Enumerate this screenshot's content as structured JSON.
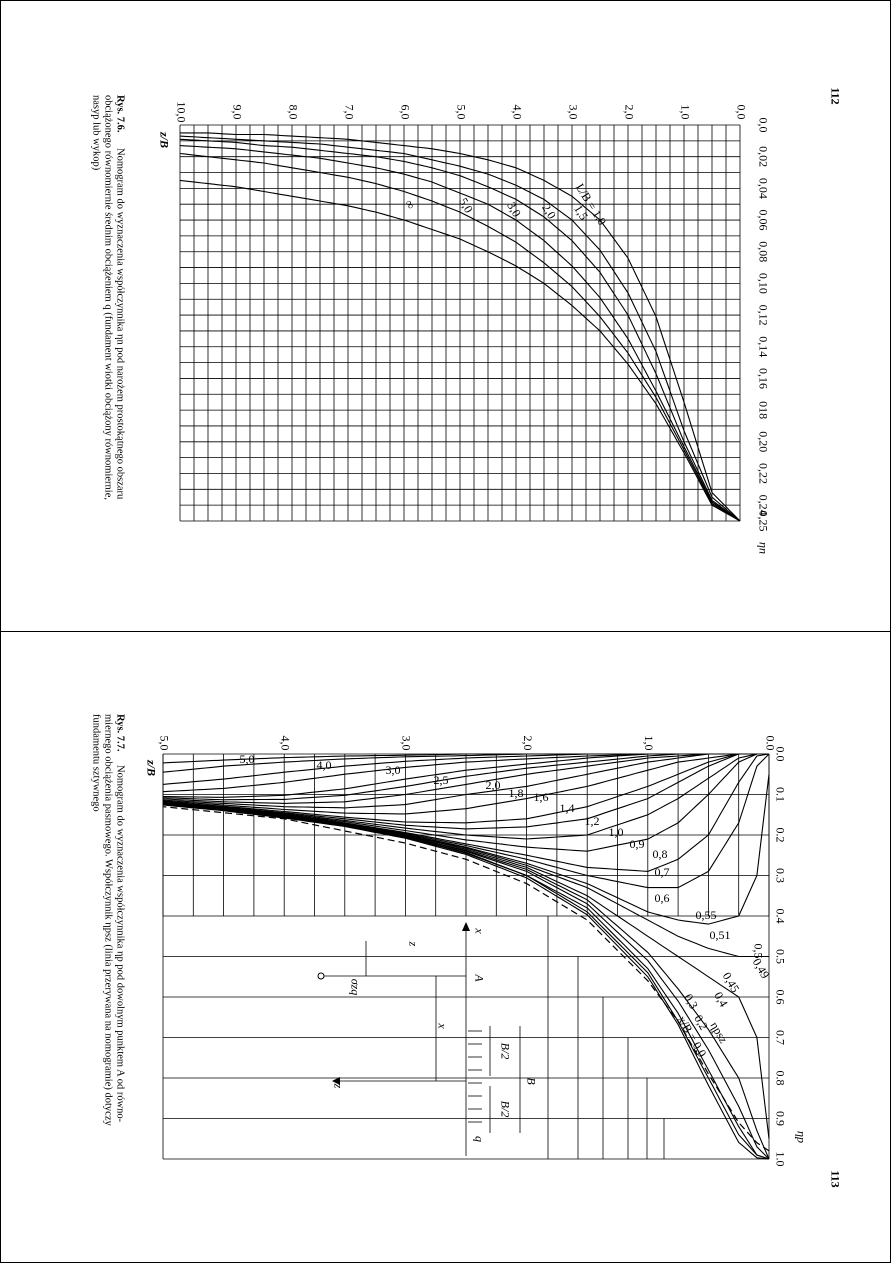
{
  "top": {
    "page_number": "112",
    "caption_lead": "Rys. 7.6.",
    "caption_lines": [
      "Nomogram do wyznaczenia współczynnika ηn pod narożem prostokątnego obszaru",
      "obciążonego równomiernie średnim obciążeniem q (fundament wiotki obciążony równomiernie,",
      "nasyp lub wykop)"
    ],
    "x_axis_label": "ηn",
    "y_axis_label": "z/B",
    "x_ticks": [
      "0,0",
      "0,02",
      "0,04",
      "0,06",
      "0,08",
      "0,10",
      "0,12",
      "0,14",
      "0,16",
      "018",
      "0,20",
      "0,22",
      "0,24",
      "0,25"
    ],
    "y_ticks": [
      "0,0",
      "1,0",
      "2,0",
      "3,0",
      "4,0",
      "5,0",
      "6,0",
      "7,0",
      "8,0",
      "9,0",
      "10,0"
    ]
  },
  "bottom": {
    "page_number": "113",
    "caption_lead": "Rys. 7.7.",
    "caption_lines": [
      "Nomogram do wyznaczenia współczynnika ηp pod dowolnym punktem A od równo-",
      "miernego obciążenia pasmowego. Współczynnik ηpsz (linia przerywana na nomogramie) dotyczy",
      "fundamentu sztywnego"
    ],
    "x_axis_label": "ηp",
    "y_axis_label": "z/B",
    "x_ticks": [
      "0.0",
      "0.1",
      "0.2",
      "0.3",
      "0.4",
      "0.5",
      "0.6",
      "0.7",
      "0.8",
      "0.9",
      "1.0"
    ],
    "y_ticks": [
      "0.0",
      "1,0",
      "2,0",
      "3,0",
      "4,0",
      "5,0"
    ],
    "inset": {
      "x_label": "x",
      "z_label": "z",
      "a_label": "A",
      "sigma_label": "σzq",
      "b_label": "B",
      "half_b_label": "B/2",
      "q_label": "q"
    }
  },
  "chart_data": [
    {
      "type": "line",
      "x_axis": "z/B",
      "y_axis": "ηn",
      "xlim": [
        0,
        10
      ],
      "ylim": [
        0,
        0.25
      ],
      "x": [
        0,
        0.5,
        1,
        1.5,
        2,
        2.5,
        3,
        3.5,
        4,
        4.5,
        5,
        5.5,
        6,
        6.5,
        7,
        7.5,
        8,
        8.5,
        9,
        9.5,
        10
      ],
      "series": [
        {
          "name": "L/B = 1,0",
          "values": [
            0.25,
            0.232,
            0.175,
            0.121,
            0.084,
            0.06,
            0.045,
            0.035,
            0.027,
            0.022,
            0.018,
            0.015,
            0.013,
            0.011,
            0.009,
            0.008,
            0.007,
            0.006,
            0.006,
            0.005,
            0.005
          ]
        },
        {
          "name": "1,5",
          "values": [
            0.25,
            0.235,
            0.193,
            0.143,
            0.106,
            0.079,
            0.06,
            0.047,
            0.038,
            0.031,
            0.026,
            0.022,
            0.018,
            0.016,
            0.014,
            0.012,
            0.011,
            0.01,
            0.009,
            0.008,
            0.007
          ]
        },
        {
          "name": "2,0",
          "values": [
            0.25,
            0.237,
            0.2,
            0.157,
            0.12,
            0.093,
            0.073,
            0.058,
            0.047,
            0.039,
            0.032,
            0.027,
            0.023,
            0.02,
            0.018,
            0.016,
            0.014,
            0.013,
            0.011,
            0.01,
            0.009
          ]
        },
        {
          "name": "3,0",
          "values": [
            0.25,
            0.238,
            0.203,
            0.168,
            0.135,
            0.109,
            0.089,
            0.073,
            0.06,
            0.05,
            0.043,
            0.036,
            0.031,
            0.027,
            0.024,
            0.021,
            0.019,
            0.017,
            0.015,
            0.014,
            0.013
          ]
        },
        {
          "name": "5,0",
          "values": [
            0.25,
            0.239,
            0.205,
            0.172,
            0.144,
            0.121,
            0.102,
            0.087,
            0.074,
            0.064,
            0.055,
            0.048,
            0.042,
            0.037,
            0.033,
            0.03,
            0.027,
            0.024,
            0.022,
            0.02,
            0.018
          ]
        },
        {
          "name": "∞",
          "values": [
            0.25,
            0.24,
            0.207,
            0.176,
            0.151,
            0.13,
            0.114,
            0.1,
            0.089,
            0.08,
            0.072,
            0.066,
            0.06,
            0.055,
            0.051,
            0.048,
            0.045,
            0.042,
            0.039,
            0.037,
            0.035
          ]
        }
      ]
    },
    {
      "type": "line",
      "x_axis": "z/B",
      "y_axis": "ηp",
      "xlim": [
        0,
        5
      ],
      "ylim": [
        0,
        1
      ],
      "x": [
        0,
        0.1,
        0.25,
        0.5,
        0.75,
        1,
        1.5,
        2,
        2.5,
        3,
        3.5,
        4,
        4.5,
        5
      ],
      "series": [
        {
          "name": "x/B = 0,0",
          "values": [
            1.0,
            0.997,
            0.959,
            0.818,
            0.668,
            0.55,
            0.397,
            0.306,
            0.248,
            0.208,
            0.179,
            0.158,
            0.14,
            0.126
          ]
        },
        {
          "name": "ηpsz",
          "values": [
            0.98,
            0.96,
            0.91,
            0.79,
            0.66,
            0.56,
            0.41,
            0.32,
            0.26,
            0.22,
            0.19,
            0.16,
            0.145,
            0.13
          ]
        },
        {
          "name": "0,2",
          "values": [
            1.0,
            0.99,
            0.94,
            0.8,
            0.66,
            0.54,
            0.39,
            0.3,
            0.245,
            0.206,
            0.178,
            0.157,
            0.139,
            0.125
          ]
        },
        {
          "name": "0,3",
          "values": [
            1.0,
            0.99,
            0.92,
            0.78,
            0.64,
            0.53,
            0.38,
            0.3,
            0.243,
            0.205,
            0.177,
            0.156,
            0.138,
            0.125
          ]
        },
        {
          "name": "0,4",
          "values": [
            1.0,
            0.97,
            0.87,
            0.73,
            0.61,
            0.51,
            0.37,
            0.29,
            0.24,
            0.203,
            0.176,
            0.155,
            0.137,
            0.124
          ]
        },
        {
          "name": "0,45",
          "values": [
            1.0,
            0.93,
            0.8,
            0.68,
            0.58,
            0.49,
            0.36,
            0.285,
            0.238,
            0.202,
            0.175,
            0.154,
            0.137,
            0.124
          ]
        },
        {
          "name": "0,49",
          "values": [
            0.95,
            0.7,
            0.6,
            0.55,
            0.5,
            0.45,
            0.35,
            0.28,
            0.235,
            0.2,
            0.174,
            0.153,
            0.136,
            0.123
          ]
        },
        {
          "name": "0,5",
          "values": [
            0.5,
            0.5,
            0.5,
            0.48,
            0.45,
            0.41,
            0.33,
            0.275,
            0.232,
            0.199,
            0.173,
            0.152,
            0.136,
            0.123
          ]
        },
        {
          "name": "0,51",
          "values": [
            0.05,
            0.3,
            0.4,
            0.42,
            0.41,
            0.39,
            0.32,
            0.27,
            0.23,
            0.198,
            0.172,
            0.152,
            0.135,
            0.122
          ]
        },
        {
          "name": "0,55",
          "values": [
            0.0,
            0.03,
            0.17,
            0.29,
            0.33,
            0.33,
            0.3,
            0.26,
            0.226,
            0.196,
            0.171,
            0.151,
            0.135,
            0.122
          ]
        },
        {
          "name": "0,6",
          "values": [
            0.0,
            0.005,
            0.07,
            0.2,
            0.26,
            0.29,
            0.28,
            0.25,
            0.222,
            0.194,
            0.17,
            0.15,
            0.134,
            0.121
          ]
        },
        {
          "name": "0,7",
          "values": [
            0.0,
            0.0,
            0.02,
            0.1,
            0.17,
            0.21,
            0.24,
            0.23,
            0.212,
            0.189,
            0.167,
            0.149,
            0.133,
            0.121
          ]
        },
        {
          "name": "0,8",
          "values": [
            0.0,
            0.0,
            0.01,
            0.06,
            0.11,
            0.15,
            0.2,
            0.21,
            0.2,
            0.183,
            0.164,
            0.147,
            0.132,
            0.12
          ]
        },
        {
          "name": "0,9",
          "values": [
            0.0,
            0.0,
            0.0,
            0.03,
            0.07,
            0.11,
            0.16,
            0.18,
            0.185,
            0.176,
            0.16,
            0.145,
            0.131,
            0.119
          ]
        },
        {
          "name": "1,0",
          "values": [
            0.0,
            0.0,
            0.0,
            0.02,
            0.05,
            0.08,
            0.13,
            0.16,
            0.17,
            0.168,
            0.156,
            0.142,
            0.129,
            0.118
          ]
        },
        {
          "name": "1,2",
          "values": [
            0.0,
            0.0,
            0.0,
            0.01,
            0.02,
            0.04,
            0.08,
            0.11,
            0.135,
            0.148,
            0.146,
            0.137,
            0.126,
            0.116
          ]
        },
        {
          "name": "1,4",
          "values": [
            0.0,
            0.0,
            0.0,
            0.0,
            0.01,
            0.02,
            0.05,
            0.08,
            0.1,
            0.125,
            0.133,
            0.13,
            0.122,
            0.114
          ]
        },
        {
          "name": "1,6",
          "values": [
            0.0,
            0.0,
            0.0,
            0.0,
            0.005,
            0.01,
            0.03,
            0.05,
            0.075,
            0.1,
            0.118,
            0.122,
            0.118,
            0.111
          ]
        },
        {
          "name": "1,8",
          "values": [
            0.0,
            0.0,
            0.0,
            0.0,
            0.0,
            0.005,
            0.02,
            0.035,
            0.055,
            0.08,
            0.102,
            0.112,
            0.113,
            0.108
          ]
        },
        {
          "name": "2,0",
          "values": [
            0.0,
            0.0,
            0.0,
            0.0,
            0.0,
            0.0,
            0.01,
            0.025,
            0.04,
            0.062,
            0.086,
            0.102,
            0.107,
            0.105
          ]
        },
        {
          "name": "2,5",
          "values": [
            0.0,
            0.0,
            0.0,
            0.0,
            0.0,
            0.0,
            0.005,
            0.012,
            0.02,
            0.033,
            0.05,
            0.07,
            0.085,
            0.093
          ]
        },
        {
          "name": "3,0",
          "values": [
            0.0,
            0.0,
            0.0,
            0.0,
            0.0,
            0.0,
            0.0,
            0.005,
            0.01,
            0.018,
            0.03,
            0.045,
            0.062,
            0.075
          ]
        },
        {
          "name": "4,0",
          "values": [
            0.0,
            0.0,
            0.0,
            0.0,
            0.0,
            0.0,
            0.0,
            0.0,
            0.004,
            0.007,
            0.012,
            0.02,
            0.03,
            0.045
          ]
        },
        {
          "name": "5,0",
          "values": [
            0.0,
            0.0,
            0.0,
            0.0,
            0.0,
            0.0,
            0.0,
            0.0,
            0.0,
            0.003,
            0.005,
            0.009,
            0.015,
            0.022
          ]
        }
      ]
    }
  ]
}
